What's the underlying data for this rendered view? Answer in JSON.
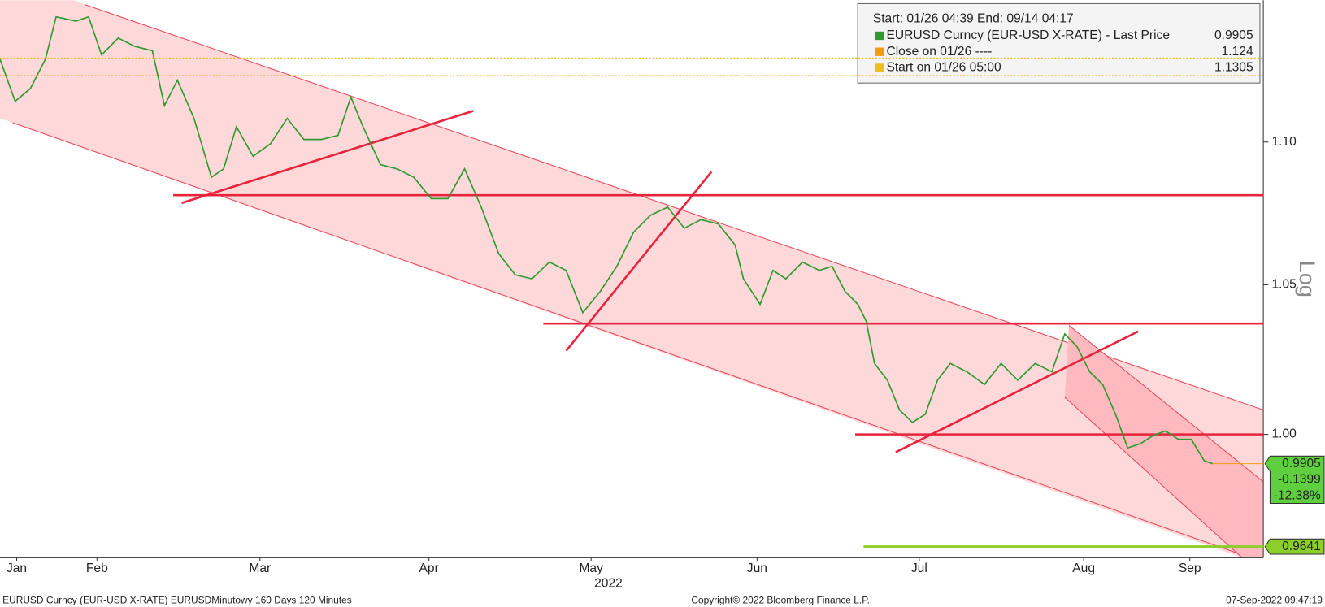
{
  "chart_data": {
    "type": "line",
    "header": "Start: 01/26 04:39 End: 09/14 04:17",
    "y_label": "Log",
    "log_scale": true,
    "x": [
      0,
      2.0,
      4.0,
      6.0,
      7.4,
      10.0,
      11.7,
      13.4,
      15.6,
      17.8,
      20.1,
      21.7,
      23.4,
      25.6,
      27.9,
      29.5,
      31.2,
      33.4,
      35.7,
      37.9,
      40.1,
      42.4,
      44.6,
      46.3,
      47.9,
      50.2,
      52.4,
      54.6,
      56.9,
      59.1,
      61.3,
      63.5,
      65.8,
      68.0,
      70.2,
      72.5,
      74.7,
      76.9,
      79.2,
      81.4,
      83.6,
      85.8,
      88.1,
      90.3,
      92.5,
      94.8,
      97.0,
      98.1,
      100.3,
      102.0,
      103.7,
      105.9,
      108.1,
      109.8,
      111.5,
      113.2,
      114.3,
      115.4,
      117.1,
      118.7,
      120.4,
      122.1,
      123.7,
      125.4,
      127.6,
      129.9,
      132.1,
      134.3,
      136.6,
      138.8,
      140.5,
      142.1,
      143.8,
      145.5,
      147.2,
      148.8,
      150.5,
      152.2,
      153.8,
      155.5,
      157.2,
      158.9,
      160.0
    ],
    "xlim": [
      0,
      166.7
    ],
    "xticks": [
      {
        "value": 2.2,
        "label": "Jan"
      },
      {
        "value": 12.8,
        "label": "Feb"
      },
      {
        "value": 34.3,
        "label": "Mar"
      },
      {
        "value": 56.6,
        "label": "Apr"
      },
      {
        "value": 78.0,
        "label": "May"
      },
      {
        "value": 99.9,
        "label": "Jun"
      },
      {
        "value": 121.3,
        "label": "Jul"
      },
      {
        "value": 143.0,
        "label": "Aug"
      },
      {
        "value": 157.0,
        "label": "Sep"
      }
    ],
    "x_sublabel": "2022",
    "ylim": [
      0.9606,
      1.152
    ],
    "yticks": [
      {
        "value": 1.1,
        "label": "1.10"
      },
      1.05,
      {
        "value": 1,
        "label": "1.00"
      }
    ],
    "series": [
      {
        "name": "EURUSD Curncy (EUR-USD X-RATE) - Last Price",
        "color": "#2f9a2f",
        "values": [
          1.1301,
          1.1147,
          1.1193,
          1.1301,
          1.1458,
          1.1442,
          1.1458,
          1.1317,
          1.1379,
          1.1348,
          1.1332,
          1.1131,
          1.1224,
          1.1085,
          1.0874,
          1.0904,
          1.1055,
          1.0949,
          1.0994,
          1.1085,
          1.1009,
          1.1009,
          1.1024,
          1.1162,
          1.1055,
          1.0919,
          1.0904,
          1.0874,
          1.0799,
          1.0799,
          1.0904,
          1.0769,
          1.0607,
          1.0534,
          1.052,
          1.0578,
          1.0549,
          1.0405,
          1.0477,
          1.0563,
          1.0681,
          1.074,
          1.0769,
          1.0695,
          1.0725,
          1.071,
          1.0637,
          1.052,
          1.0433,
          1.0549,
          1.052,
          1.0578,
          1.0549,
          1.0563,
          1.0477,
          1.0433,
          1.0376,
          1.0234,
          1.0178,
          1.008,
          1.0039,
          1.0066,
          1.0178,
          1.0234,
          1.0206,
          1.0164,
          1.0234,
          1.0178,
          1.0234,
          1.0206,
          1.0333,
          1.0291,
          1.0206,
          1.0164,
          1.0066,
          0.9956,
          0.997,
          0.9997,
          1.0011,
          0.9984,
          0.9984,
          0.9915,
          0.9905
        ]
      }
    ],
    "reference_lines": [
      {
        "name": "Close on 01/26 ----",
        "value": 1.124,
        "color": "#f39c12"
      },
      {
        "name": "Start on 01/26 05:00",
        "value": 1.1305,
        "color": "#e8c020"
      }
    ],
    "levels": [
      1.0811,
      1.0368,
      1
    ],
    "level_color": "#e8243c",
    "target": {
      "value": 0.9641,
      "color": "#8ccf2a"
    },
    "change": -0.1399,
    "change_pct": {
      "value": -12.38,
      "label": "-12.38%"
    },
    "footer": {
      "left": "EURUSD Curncy (EUR-USD X-RATE) EURUSDMinutowy 160 Days 120 Minutes",
      "center": "Copyright© 2022 Bloomberg Finance L.P.",
      "right": "07-Sep-2022 09:47:19"
    }
  }
}
